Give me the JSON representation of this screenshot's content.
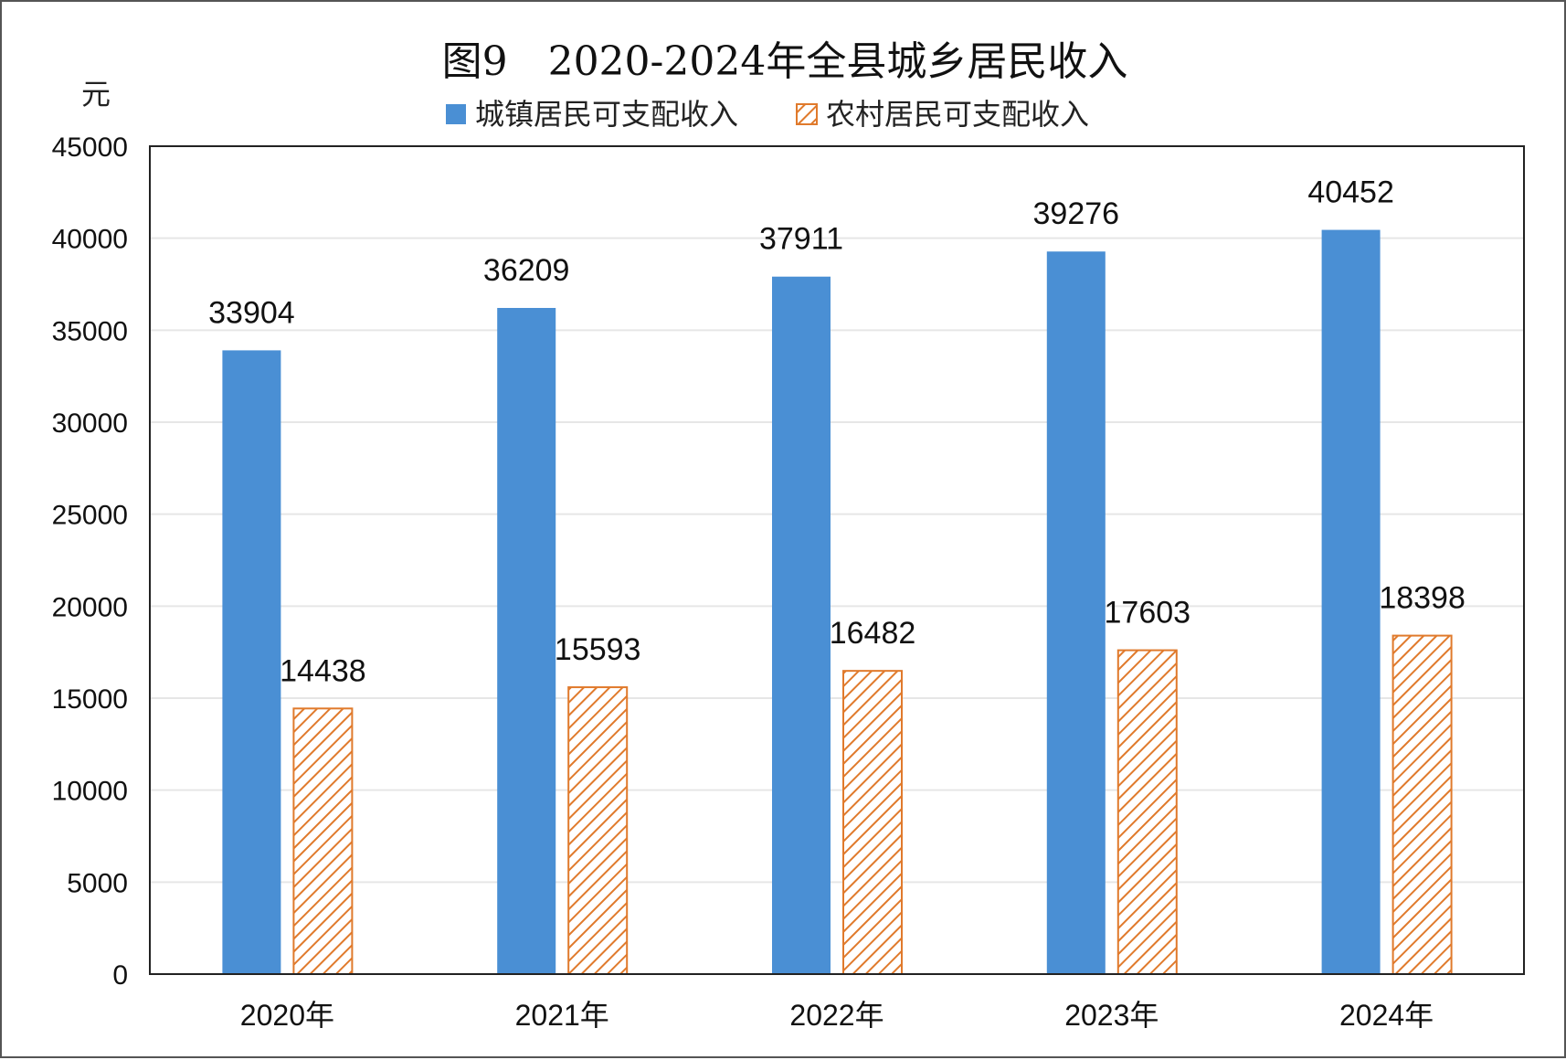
{
  "chart_data": {
    "type": "bar",
    "title": "图9　2020-2024年全县城乡居民收入",
    "ylabel": "元",
    "xlabel": "",
    "ylim": [
      0,
      45000
    ],
    "ytick_step": 5000,
    "grid": true,
    "legend_position": "top",
    "categories": [
      "2020年",
      "2021年",
      "2022年",
      "2023年",
      "2024年"
    ],
    "series": [
      {
        "name": "城镇居民可支配收入",
        "values": [
          33904,
          36209,
          37911,
          39276,
          40452
        ],
        "color": "#4a8fd4",
        "pattern": "solid"
      },
      {
        "name": "农村居民可支配收入",
        "values": [
          14438,
          15593,
          16482,
          17603,
          18398
        ],
        "color": "#e07a2c",
        "pattern": "hatched"
      }
    ]
  }
}
